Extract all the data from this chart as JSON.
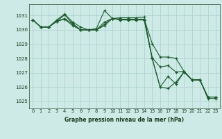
{
  "title": "Graphe pression niveau de la mer (hPa)",
  "bg_color": "#cdeae7",
  "grid_color": "#afd4d0",
  "line_color": "#1a5c2a",
  "marker_color": "#1a5c2a",
  "xlim": [
    -0.5,
    23.5
  ],
  "ylim": [
    1024.5,
    1031.8
  ],
  "yticks": [
    1025,
    1026,
    1027,
    1028,
    1029,
    1030,
    1031
  ],
  "xticks": [
    0,
    1,
    2,
    3,
    4,
    5,
    6,
    7,
    8,
    9,
    10,
    11,
    12,
    13,
    14,
    15,
    16,
    17,
    18,
    19,
    20,
    21,
    22,
    23
  ],
  "series": [
    [
      1030.7,
      1030.2,
      1030.2,
      1030.7,
      1031.1,
      1030.55,
      1030.2,
      1030.0,
      1030.1,
      1031.35,
      1030.8,
      1030.85,
      1030.85,
      1030.85,
      1030.9,
      1028.05,
      1027.4,
      1027.5,
      1027.05,
      1027.1,
      1026.5,
      1026.5,
      1025.2,
      1025.2
    ],
    [
      1030.7,
      1030.2,
      1030.2,
      1030.6,
      1031.05,
      1030.45,
      1030.0,
      1030.0,
      1030.0,
      1030.55,
      1030.8,
      1030.75,
      1030.75,
      1030.75,
      1030.75,
      1029.05,
      1028.1,
      1028.1,
      1028.0,
      1027.1,
      1026.5,
      1026.5,
      1025.3,
      1025.3
    ],
    [
      1030.7,
      1030.2,
      1030.2,
      1030.6,
      1030.75,
      1030.3,
      1030.0,
      1030.0,
      1030.0,
      1030.4,
      1030.8,
      1030.7,
      1030.7,
      1030.7,
      1030.7,
      1028.0,
      1026.0,
      1025.9,
      1026.35,
      1027.05,
      1026.5,
      1026.5,
      1025.3,
      1025.3
    ],
    [
      1030.7,
      1030.2,
      1030.2,
      1030.6,
      1030.8,
      1030.4,
      1030.0,
      1030.0,
      1030.0,
      1030.3,
      1030.8,
      1030.7,
      1030.7,
      1030.7,
      1030.7,
      1028.0,
      1026.0,
      1026.75,
      1026.2,
      1027.05,
      1026.5,
      1026.5,
      1025.3,
      1025.3
    ]
  ],
  "figsize": [
    3.2,
    2.0
  ],
  "dpi": 100
}
